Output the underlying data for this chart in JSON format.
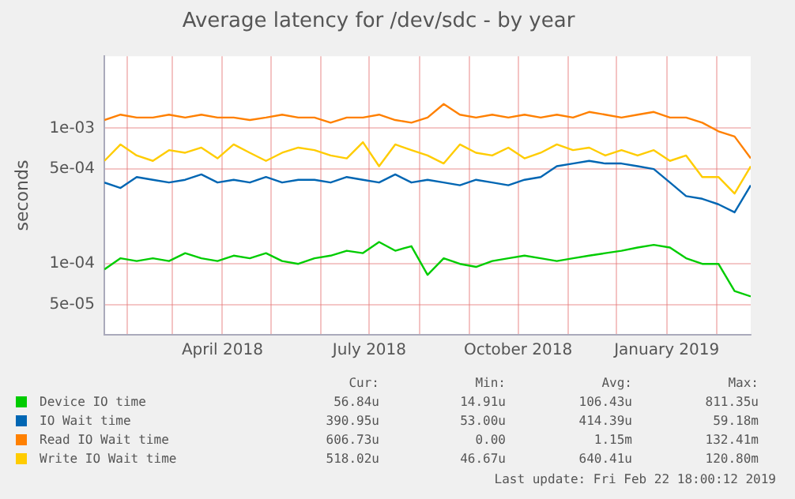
{
  "chart_data": {
    "type": "line",
    "title": "Average latency for /dev/sdc - by year",
    "ylabel": "seconds",
    "log": "y",
    "grid": true,
    "legend": "bottom",
    "marker": "none",
    "line_style": "solid",
    "x": [
      "2018-01-18",
      "2018-01-28",
      "2018-02-07",
      "2018-02-17",
      "2018-02-27",
      "2018-03-09",
      "2018-03-19",
      "2018-03-29",
      "2018-04-08",
      "2018-04-18",
      "2018-04-28",
      "2018-05-08",
      "2018-05-18",
      "2018-05-28",
      "2018-06-07",
      "2018-06-17",
      "2018-06-27",
      "2018-07-07",
      "2018-07-17",
      "2018-07-27",
      "2018-08-06",
      "2018-08-16",
      "2018-08-26",
      "2018-09-05",
      "2018-09-15",
      "2018-09-25",
      "2018-10-05",
      "2018-10-15",
      "2018-10-25",
      "2018-11-04",
      "2018-11-14",
      "2018-11-24",
      "2018-12-04",
      "2018-12-14",
      "2018-12-24",
      "2019-01-03",
      "2019-01-13",
      "2019-01-23",
      "2019-02-02",
      "2019-02-12",
      "2019-02-22"
    ],
    "xlim": [
      "2018-01-18",
      "2019-02-22"
    ],
    "xticks": [
      {
        "value": "2018-02-01",
        "label": null
      },
      {
        "value": "2018-03-01",
        "label": null
      },
      {
        "value": "2018-04-01",
        "label": "April 2018"
      },
      {
        "value": "2018-05-01",
        "label": null
      },
      {
        "value": "2018-06-01",
        "label": null
      },
      {
        "value": "2018-07-01",
        "label": "July 2018"
      },
      {
        "value": "2018-08-01",
        "label": null
      },
      {
        "value": "2018-09-01",
        "label": null
      },
      {
        "value": "2018-10-01",
        "label": "October 2018"
      },
      {
        "value": "2018-11-01",
        "label": null
      },
      {
        "value": "2018-12-01",
        "label": null
      },
      {
        "value": "2019-01-01",
        "label": "January 2019"
      },
      {
        "value": "2019-02-01",
        "label": null
      }
    ],
    "ylim": [
      3e-05,
      0.0034
    ],
    "yticks": [
      {
        "value": 5e-05,
        "label": "5e-05"
      },
      {
        "value": 0.0001,
        "label": "1e-04"
      },
      {
        "value": 0.0005,
        "label": "5e-04"
      },
      {
        "value": 0.001,
        "label": "1e-03"
      }
    ],
    "series": [
      {
        "name": "Device IO time",
        "color": "#00cc00",
        "values": [
          9.1e-05,
          0.00011,
          0.000105,
          0.00011,
          0.000105,
          0.00012,
          0.00011,
          0.000105,
          0.000115,
          0.00011,
          0.00012,
          0.000105,
          0.0001,
          0.00011,
          0.000115,
          0.000125,
          0.00012,
          0.000145,
          0.000125,
          0.000135,
          8.3e-05,
          0.00011,
          0.0001,
          9.5e-05,
          0.000105,
          0.00011,
          0.000115,
          0.00011,
          0.000105,
          0.00011,
          0.000115,
          0.00012,
          0.000125,
          0.000132,
          0.000138,
          0.000132,
          0.00011,
          0.0001,
          0.0001,
          6.3e-05,
          5.75e-05
        ]
      },
      {
        "name": "IO Wait time",
        "color": "#0066b3",
        "values": [
          0.000398,
          0.000363,
          0.000437,
          0.000417,
          0.000398,
          0.000417,
          0.000457,
          0.000398,
          0.000417,
          0.000398,
          0.000437,
          0.000398,
          0.000417,
          0.000417,
          0.000398,
          0.000437,
          0.000417,
          0.000398,
          0.000457,
          0.000398,
          0.000417,
          0.000398,
          0.00038,
          0.000417,
          0.000398,
          0.00038,
          0.000417,
          0.000437,
          0.000525,
          0.00055,
          0.000575,
          0.00055,
          0.00055,
          0.000525,
          0.0005,
          0.000398,
          0.000316,
          0.000302,
          0.000275,
          0.00024,
          0.00038
        ]
      },
      {
        "name": "Read IO Wait time",
        "color": "#ff8000",
        "values": [
          0.00115,
          0.00126,
          0.0012,
          0.0012,
          0.00126,
          0.0012,
          0.00126,
          0.0012,
          0.0012,
          0.00115,
          0.0012,
          0.00126,
          0.0012,
          0.0012,
          0.0011,
          0.0012,
          0.0012,
          0.00126,
          0.00115,
          0.0011,
          0.0012,
          0.00151,
          0.00126,
          0.0012,
          0.00126,
          0.0012,
          0.00126,
          0.0012,
          0.00126,
          0.0012,
          0.00132,
          0.00126,
          0.0012,
          0.00126,
          0.00132,
          0.0012,
          0.0012,
          0.0011,
          0.00095,
          0.00087,
          0.0006
        ]
      },
      {
        "name": "Write IO Wait time",
        "color": "#ffcc00",
        "values": [
          0.000575,
          0.00076,
          0.00063,
          0.000575,
          0.00069,
          0.00066,
          0.00072,
          0.0006,
          0.00076,
          0.00066,
          0.000575,
          0.00066,
          0.00072,
          0.00069,
          0.00063,
          0.0006,
          0.00079,
          0.000525,
          0.00076,
          0.00069,
          0.00063,
          0.00055,
          0.00076,
          0.00066,
          0.00063,
          0.00072,
          0.0006,
          0.00066,
          0.00076,
          0.00069,
          0.00072,
          0.00063,
          0.00069,
          0.00063,
          0.00069,
          0.000575,
          0.00063,
          0.000437,
          0.000437,
          0.00033,
          0.000525
        ]
      }
    ],
    "annotations": [
      "Cur:",
      "Min:",
      "Avg:",
      "Max:",
      "56.84u",
      "14.91u",
      "106.43u",
      "811.35u",
      "390.95u",
      "53.00u",
      "414.39u",
      "59.18m",
      "606.73u",
      "0.00",
      "1.15m",
      "132.41m",
      "518.02u",
      "46.67u",
      "640.41u",
      "120.80m",
      "Last update: Fri Feb 22 18:00:12 2019"
    ]
  }
}
